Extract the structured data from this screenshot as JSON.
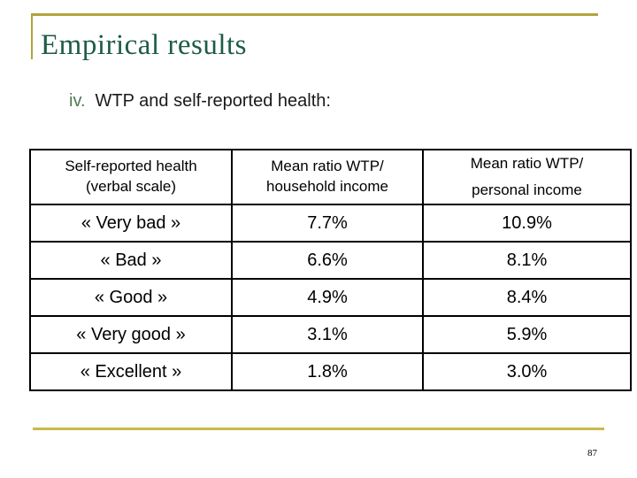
{
  "slide": {
    "title": "Empirical results",
    "subtitle_number": "iv.",
    "subtitle_text": "WTP and self-reported health:",
    "page_number": "87"
  },
  "colors": {
    "title_green": "#1E5C46",
    "subtitle_number_green": "#4E7B52",
    "accent_bracket": "#B5A33C",
    "bottom_rule": "#C9B94B",
    "table_border": "#000000",
    "body_text": "#000000"
  },
  "table": {
    "headers": [
      {
        "line1": "Self-reported health",
        "line2": "(verbal scale)"
      },
      {
        "line1": "Mean ratio WTP/",
        "line2": "household income"
      },
      {
        "line1": "Mean ratio WTP/",
        "line2": "personal income"
      }
    ],
    "rows": [
      [
        "« Very bad »",
        "7.7%",
        "10.9%"
      ],
      [
        "« Bad »",
        "6.6%",
        "8.1%"
      ],
      [
        "« Good »",
        "4.9%",
        "8.4%"
      ],
      [
        "« Very good »",
        "3.1%",
        "5.9%"
      ],
      [
        "« Excellent »",
        "1.8%",
        "3.0%"
      ]
    ]
  },
  "chart_data": {
    "type": "table",
    "title": "WTP and self-reported health",
    "columns": [
      "Self-reported health (verbal scale)",
      "Mean ratio WTP/ household income",
      "Mean ratio WTP/ personal income"
    ],
    "rows": [
      [
        "« Very bad »",
        7.7,
        10.9
      ],
      [
        "« Bad »",
        6.6,
        8.1
      ],
      [
        "« Good »",
        4.9,
        8.4
      ],
      [
        "« Very good »",
        3.1,
        5.9
      ],
      [
        "« Excellent »",
        1.8,
        3.0
      ]
    ],
    "value_unit": "%"
  }
}
